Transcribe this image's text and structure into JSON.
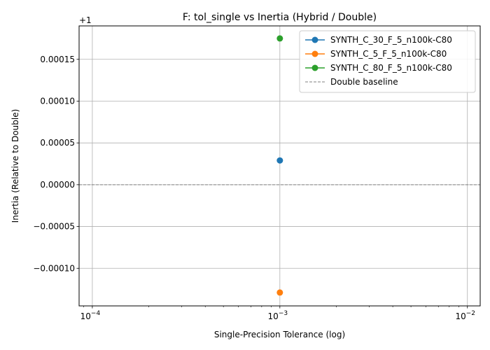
{
  "chart_data": {
    "type": "scatter",
    "title": "F: tol_single vs Inertia (Hybrid / Double)",
    "xlabel": "Single-Precision Tolerance (log)",
    "ylabel": "Inertia (Relative to Double)",
    "x_scale": "log",
    "xlim": [
      8.5e-05,
      0.0117
    ],
    "ylim": [
      -0.000145,
      0.00019
    ],
    "y_offset_label": "+1",
    "x_ticks": [
      {
        "value": 0.0001,
        "base": "10",
        "exp": "−4"
      },
      {
        "value": 0.001,
        "base": "10",
        "exp": "−3"
      },
      {
        "value": 0.01,
        "base": "10",
        "exp": "−2"
      }
    ],
    "y_ticks": [
      {
        "value": 0.00015,
        "label": "0.00015"
      },
      {
        "value": 0.0001,
        "label": "0.00010"
      },
      {
        "value": 5e-05,
        "label": "0.00005"
      },
      {
        "value": 0.0,
        "label": "0.00000"
      },
      {
        "value": -5e-05,
        "label": "−0.00005"
      },
      {
        "value": -0.0001,
        "label": "−0.00010"
      }
    ],
    "grid": true,
    "legend_position": "top-right",
    "series": [
      {
        "name": "SYNTH_C_30_F_5_n100k-C80",
        "color": "#1f77b4",
        "x": [
          0.001
        ],
        "y": [
          2.9e-05
        ]
      },
      {
        "name": "SYNTH_C_5_F_5_n100k-C80",
        "color": "#ff7f0e",
        "x": [
          0.001
        ],
        "y": [
          -0.000129
        ]
      },
      {
        "name": "SYNTH_C_80_F_5_n100k-C80",
        "color": "#2ca02c",
        "x": [
          0.001
        ],
        "y": [
          0.000175
        ]
      }
    ],
    "baseline": {
      "name": "Double baseline",
      "y": 0.0,
      "color": "#808080"
    }
  }
}
